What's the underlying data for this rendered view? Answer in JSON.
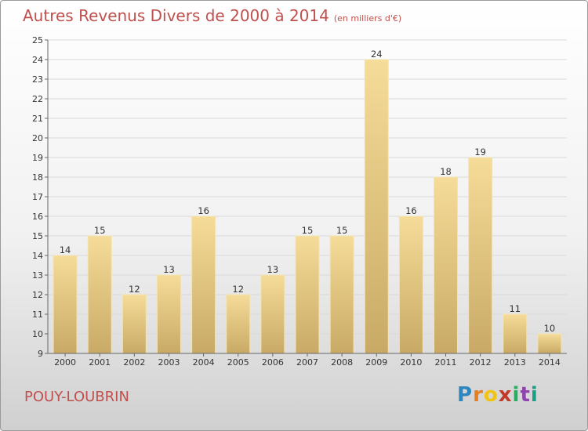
{
  "header": {
    "title": "Autres Revenus Divers de 2000 à 2014",
    "subtitle": "(en milliers d'€)"
  },
  "footer": {
    "town": "POUY-LOUBRIN",
    "logo": "Proxiti"
  },
  "colors": {
    "title": "#c0504d",
    "bar_light": "#f5dc98",
    "bar_dark": "#c8aa66",
    "grid": "#d9d9d9"
  },
  "chart_data": {
    "type": "bar",
    "title": "Autres Revenus Divers de 2000 à 2014",
    "subtitle": "(en milliers d'€)",
    "xlabel": "",
    "ylabel": "",
    "categories": [
      "2000",
      "2001",
      "2002",
      "2003",
      "2004",
      "2005",
      "2006",
      "2007",
      "2008",
      "2009",
      "2010",
      "2011",
      "2012",
      "2013",
      "2014"
    ],
    "values": [
      14,
      15,
      12,
      13,
      16,
      12,
      13,
      15,
      15,
      24,
      16,
      18,
      19,
      11,
      10
    ],
    "ylim": [
      9,
      25
    ],
    "yticks": [
      9,
      10,
      11,
      12,
      13,
      14,
      15,
      16,
      17,
      18,
      19,
      20,
      21,
      22,
      23,
      24,
      25
    ],
    "grid": true,
    "legend": "none"
  }
}
